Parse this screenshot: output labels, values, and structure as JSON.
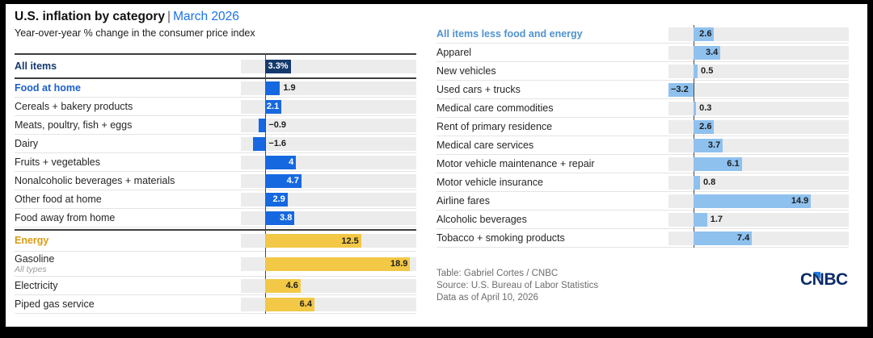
{
  "header": {
    "title": "U.S. inflation by category",
    "separator": "|",
    "period": "March 2026",
    "subtitle": "Year-over-year % change in the consumer price index"
  },
  "footer": {
    "credit": "Table: Gabriel Cortes / CNBC",
    "source": "Source: U.S. Bureau of Labor Statistics",
    "date": "Data as of April 10, 2026",
    "logo": "CNBC"
  },
  "chart_data": {
    "type": "bar",
    "orientation": "horizontal",
    "title": "U.S. inflation by category | March 2026",
    "subtitle": "Year-over-year % change in the consumer price index",
    "unit": "percent, year-over-year change",
    "axis_visible": false,
    "grid": false,
    "legend": "none",
    "palette": {
      "navy": "#14396d",
      "blue": "#1668e0",
      "yellow": "#f2c846",
      "lightblue": "#8fc1ee",
      "track": "#ececec",
      "accent_blue_text": "#1a73e8"
    },
    "columns": [
      {
        "name": "left",
        "xlim": [
          -3.2,
          19.7
        ],
        "rows": [
          {
            "label": "All items",
            "value": 3.3,
            "display": "3.3%",
            "color": "navy",
            "label_style": "navy",
            "value_pos": "inside",
            "variant": "summary"
          },
          {
            "label": "Food at home",
            "value": 1.9,
            "display": "1.9",
            "color": "blue",
            "label_style": "blue",
            "value_pos": "outside"
          },
          {
            "label": "Cereals + bakery products",
            "value": 2.1,
            "display": "2.1",
            "color": "blue",
            "value_pos": "inside"
          },
          {
            "label": "Meats, poultry, fish + eggs",
            "value": -0.9,
            "display": "−0.9",
            "color": "blue",
            "value_pos": "outside"
          },
          {
            "label": "Dairy",
            "value": -1.6,
            "display": "−1.6",
            "color": "blue",
            "value_pos": "outside"
          },
          {
            "label": "Fruits + vegetables",
            "value": 4,
            "display": "4",
            "color": "blue",
            "value_pos": "inside"
          },
          {
            "label": "Nonalcoholic beverages + materials",
            "value": 4.7,
            "display": "4.7",
            "color": "blue",
            "value_pos": "inside"
          },
          {
            "label": "Other food at home",
            "value": 2.9,
            "display": "2.9",
            "color": "blue",
            "value_pos": "inside"
          },
          {
            "label": "Food away from home",
            "value": 3.8,
            "display": "3.8",
            "color": "blue",
            "value_pos": "inside"
          },
          {
            "label": "Energy",
            "value": 12.5,
            "display": "12.5",
            "color": "yellow",
            "label_style": "gold",
            "value_pos": "inside",
            "variant": "section"
          },
          {
            "label": "Gasoline",
            "sub": "All types",
            "value": 18.9,
            "display": "18.9",
            "color": "yellow",
            "value_pos": "inside",
            "variant": "tall"
          },
          {
            "label": "Electricity",
            "value": 4.6,
            "display": "4.6",
            "color": "yellow",
            "value_pos": "inside"
          },
          {
            "label": "Piped gas service",
            "value": 6.4,
            "display": "6.4",
            "color": "yellow",
            "value_pos": "inside"
          }
        ]
      },
      {
        "name": "right",
        "xlim": [
          -3.2,
          19.7
        ],
        "rows": [
          {
            "label": "All items less food and energy",
            "value": 2.6,
            "display": "2.6",
            "color": "lightblue",
            "label_style": "lightblue",
            "value_pos": "inside"
          },
          {
            "label": "Apparel",
            "value": 3.4,
            "display": "3.4",
            "color": "lightblue",
            "value_pos": "inside"
          },
          {
            "label": "New vehicles",
            "value": 0.5,
            "display": "0.5",
            "color": "lightblue",
            "value_pos": "outside"
          },
          {
            "label": "Used cars + trucks",
            "value": -3.2,
            "display": "−3.2",
            "color": "lightblue",
            "value_pos": "inside"
          },
          {
            "label": "Medical care commodities",
            "value": 0.3,
            "display": "0.3",
            "color": "lightblue",
            "value_pos": "outside"
          },
          {
            "label": "Rent of primary residence",
            "value": 2.6,
            "display": "2.6",
            "color": "lightblue",
            "value_pos": "inside"
          },
          {
            "label": "Medical care services",
            "value": 3.7,
            "display": "3.7",
            "color": "lightblue",
            "value_pos": "inside"
          },
          {
            "label": "Motor vehicle maintenance + repair",
            "value": 6.1,
            "display": "6.1",
            "color": "lightblue",
            "value_pos": "inside"
          },
          {
            "label": "Motor vehicle insurance",
            "value": 0.8,
            "display": "0.8",
            "color": "lightblue",
            "value_pos": "outside"
          },
          {
            "label": "Airline fares",
            "value": 14.9,
            "display": "14.9",
            "color": "lightblue",
            "value_pos": "inside"
          },
          {
            "label": "Alcoholic beverages",
            "value": 1.7,
            "display": "1.7",
            "color": "lightblue",
            "value_pos": "outside"
          },
          {
            "label": "Tobacco + smoking products",
            "value": 7.4,
            "display": "7.4",
            "color": "lightblue",
            "value_pos": "inside"
          }
        ]
      }
    ]
  }
}
